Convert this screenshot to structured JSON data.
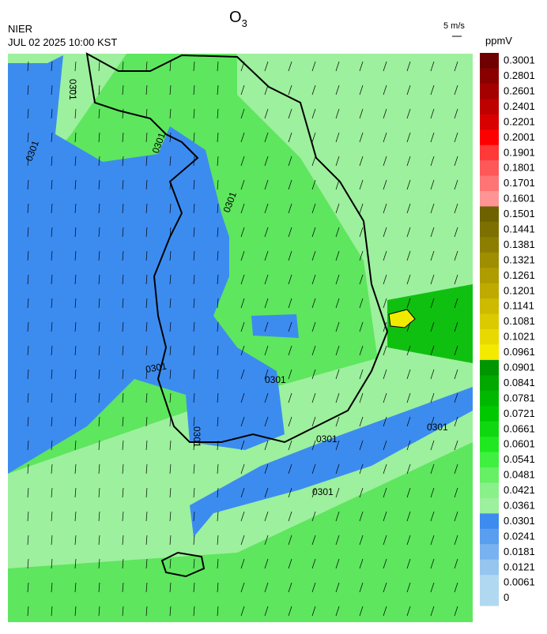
{
  "header": {
    "title": "O",
    "title_subscript": "3",
    "source": "NIER",
    "timestamp": "JUL 02 2025 10:00 KST",
    "wind_scale": "5 m/s",
    "unit": "ppmV"
  },
  "colorbar": {
    "labels": [
      0.3001,
      0.2801,
      0.2601,
      0.2401,
      0.2201,
      0.2001,
      0.1901,
      0.1801,
      0.1701,
      0.1601,
      0.1501,
      0.1441,
      0.1381,
      0.1321,
      0.1261,
      0.1201,
      0.1141,
      0.1081,
      0.1021,
      0.0961,
      0.0901,
      0.0841,
      0.0781,
      0.0721,
      0.0661,
      0.0601,
      0.0541,
      0.0481,
      0.0421,
      0.0361,
      0.0301,
      0.0241,
      0.0181,
      0.0121,
      0.0061,
      0
    ],
    "colors": [
      "#6e0000",
      "#8a0000",
      "#a40000",
      "#be0000",
      "#d80000",
      "#ff0000",
      "#ff3838",
      "#ff5858",
      "#ff7474",
      "#ff9494",
      "#6e6200",
      "#7e7000",
      "#8e7e00",
      "#9e8e00",
      "#ae9c00",
      "#beaa00",
      "#ceba00",
      "#dcca00",
      "#e8da00",
      "#f4ea00",
      "#009600",
      "#00a800",
      "#00b800",
      "#00c800",
      "#10d810",
      "#20e820",
      "#40f040",
      "#66f066",
      "#8af08a",
      "#9df09d",
      "#3c8cf0",
      "#5a9ef0",
      "#78b2f0",
      "#96c6f0",
      "#b0d8f0",
      "#b0d8f0"
    ]
  },
  "map": {
    "contour_labels": [
      "0301",
      "0301",
      "0301",
      "0301",
      "0301",
      "0301",
      "0301",
      "0301",
      "0301",
      "0301"
    ]
  }
}
